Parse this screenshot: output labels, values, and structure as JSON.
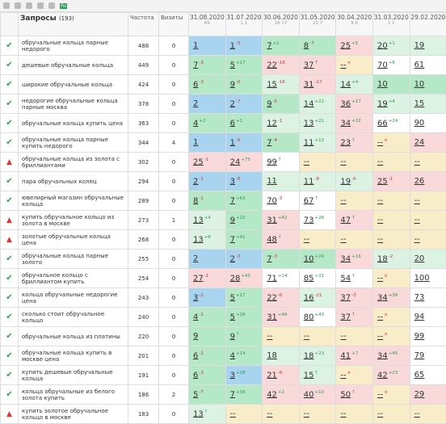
{
  "toolbar": {
    "badge": "Rs"
  },
  "header": {
    "query_title": "Запросы",
    "query_count": "(193)",
    "freq": "Частота",
    "visits": "Визиты",
    "dates": [
      {
        "date": "31.08.2020",
        "sub": "69"
      },
      {
        "date": "31.07.2020",
        "sub": "1 1"
      },
      {
        "date": "30.06.2020",
        "sub": "16 17"
      },
      {
        "date": "31.05.2020",
        "sub": "15 7"
      },
      {
        "date": "30.04.2020",
        "sub": "9 8"
      },
      {
        "date": "31.03.2020",
        "sub": "1 1"
      },
      {
        "date": "29.02.2020",
        "sub": null
      }
    ]
  },
  "rows": [
    {
      "status": "ok",
      "query": "обручальные кольца парные недорого",
      "freq": 488,
      "visits": 0,
      "cells": [
        {
          "pos": 1,
          "delta": null
        },
        {
          "pos": 1,
          "delta": "-5"
        },
        {
          "pos": 7,
          "delta": "+1"
        },
        {
          "pos": 8,
          "delta": "-7"
        },
        {
          "pos": 25,
          "delta": "+5"
        },
        {
          "pos": 20,
          "delta": "+1"
        },
        {
          "pos": 19,
          "delta": null
        }
      ]
    },
    {
      "status": "ok",
      "query": "дешевые обручальные кольца",
      "freq": 449,
      "visits": 0,
      "cells": [
        {
          "pos": 7,
          "delta": "-3"
        },
        {
          "pos": 5,
          "delta": "+17"
        },
        {
          "pos": 22,
          "delta": "-16"
        },
        {
          "pos": 37,
          "delta": "↑"
        },
        {
          "pos": "--",
          "delta": "×"
        },
        {
          "pos": 70,
          "delta": "+8"
        },
        {
          "pos": 61,
          "delta": null
        }
      ]
    },
    {
      "status": "ok",
      "query": "широкие обручальные кольца",
      "freq": 424,
      "visits": 0,
      "cells": [
        {
          "pos": 6,
          "delta": "-3"
        },
        {
          "pos": 9,
          "delta": "-6"
        },
        {
          "pos": 15,
          "delta": "-16"
        },
        {
          "pos": 31,
          "delta": "-17"
        },
        {
          "pos": 14,
          "delta": "+4"
        },
        {
          "pos": 10,
          "delta": null
        },
        {
          "pos": 10,
          "delta": null
        }
      ]
    },
    {
      "status": "ok",
      "query": "недорогие обручальные кольца парные москва",
      "freq": 378,
      "visits": 0,
      "cells": [
        {
          "pos": 2,
          "delta": null
        },
        {
          "pos": 2,
          "delta": "-7"
        },
        {
          "pos": 9,
          "delta": "-5"
        },
        {
          "pos": 14,
          "delta": "+22"
        },
        {
          "pos": 36,
          "delta": "+17"
        },
        {
          "pos": 19,
          "delta": "+4"
        },
        {
          "pos": 15,
          "delta": null
        }
      ]
    },
    {
      "status": "ok",
      "query": "обручальные кольца купить цена",
      "freq": 363,
      "visits": 0,
      "cells": [
        {
          "pos": 4,
          "delta": "+2"
        },
        {
          "pos": 6,
          "delta": "+1"
        },
        {
          "pos": 12,
          "delta": "-1"
        },
        {
          "pos": 13,
          "delta": "+21"
        },
        {
          "pos": 34,
          "delta": "+32"
        },
        {
          "pos": 66,
          "delta": "+24"
        },
        {
          "pos": 90,
          "delta": null
        }
      ]
    },
    {
      "status": "ok",
      "query": "обручальные кольца парные купить недорого",
      "freq": 344,
      "visits": 4,
      "cells": [
        {
          "pos": 1,
          "delta": null
        },
        {
          "pos": 1,
          "delta": "-6"
        },
        {
          "pos": 7,
          "delta": "-4"
        },
        {
          "pos": 11,
          "delta": "+12"
        },
        {
          "pos": 23,
          "delta": "↑"
        },
        {
          "pos": "--",
          "delta": "×"
        },
        {
          "pos": 24,
          "delta": null
        }
      ]
    },
    {
      "status": "warn",
      "query": "обручальные кольца из золота с бриллиантами",
      "freq": 302,
      "visits": 0,
      "cells": [
        {
          "pos": 25,
          "delta": "-1"
        },
        {
          "pos": 24,
          "delta": "+75"
        },
        {
          "pos": 99,
          "delta": "↑"
        },
        {
          "pos": "--",
          "delta": null
        },
        {
          "pos": "--",
          "delta": null
        },
        {
          "pos": "--",
          "delta": null
        },
        {
          "pos": "--",
          "delta": null
        }
      ]
    },
    {
      "status": "ok",
      "query": "пара обручальных колец",
      "freq": 294,
      "visits": 0,
      "cells": [
        {
          "pos": 2,
          "delta": "-1"
        },
        {
          "pos": 3,
          "delta": "-8"
        },
        {
          "pos": 11,
          "delta": null
        },
        {
          "pos": 11,
          "delta": "-8"
        },
        {
          "pos": 19,
          "delta": "-6"
        },
        {
          "pos": 25,
          "delta": "-1"
        },
        {
          "pos": 26,
          "delta": null
        }
      ]
    },
    {
      "status": "ok",
      "query": "ювелирный магазин обручальные кольца",
      "freq": 289,
      "visits": 0,
      "cells": [
        {
          "pos": 8,
          "delta": "-1"
        },
        {
          "pos": 7,
          "delta": "+63"
        },
        {
          "pos": 70,
          "delta": "-3"
        },
        {
          "pos": 67,
          "delta": "↑"
        },
        {
          "pos": "--",
          "delta": null
        },
        {
          "pos": "--",
          "delta": null
        },
        {
          "pos": "--",
          "delta": null
        }
      ]
    },
    {
      "status": "warn",
      "query": "купить обручальное кольцо из золота в москве",
      "freq": 273,
      "visits": 1,
      "cells": [
        {
          "pos": 13,
          "delta": "+4"
        },
        {
          "pos": 9,
          "delta": "+22"
        },
        {
          "pos": 31,
          "delta": "+42"
        },
        {
          "pos": 73,
          "delta": "+26"
        },
        {
          "pos": 47,
          "delta": "↑"
        },
        {
          "pos": "--",
          "delta": null
        },
        {
          "pos": "--",
          "delta": null
        }
      ]
    },
    {
      "status": "warn",
      "query": "золотые обручальные кольца цена",
      "freq": 268,
      "visits": 0,
      "cells": [
        {
          "pos": 13,
          "delta": "+6"
        },
        {
          "pos": 7,
          "delta": "+41"
        },
        {
          "pos": 48,
          "delta": "↑"
        },
        {
          "pos": "--",
          "delta": null
        },
        {
          "pos": "--",
          "delta": null
        },
        {
          "pos": "--",
          "delta": null
        },
        {
          "pos": "--",
          "delta": null
        }
      ]
    },
    {
      "status": "ok",
      "query": "обручальные кольца парные золото",
      "freq": 255,
      "visits": 0,
      "cells": [
        {
          "pos": 2,
          "delta": null
        },
        {
          "pos": 2,
          "delta": "-3"
        },
        {
          "pos": 7,
          "delta": "-3"
        },
        {
          "pos": 10,
          "delta": "+24"
        },
        {
          "pos": 34,
          "delta": "+16"
        },
        {
          "pos": 18,
          "delta": "-2"
        },
        {
          "pos": 20,
          "delta": null
        }
      ]
    },
    {
      "status": "ok",
      "query": "обручальное кольцо с бриллиантом купить",
      "freq": 254,
      "visits": 0,
      "cells": [
        {
          "pos": 27,
          "delta": "-1"
        },
        {
          "pos": 28,
          "delta": "+43"
        },
        {
          "pos": 71,
          "delta": "+14"
        },
        {
          "pos": 85,
          "delta": "+31"
        },
        {
          "pos": 54,
          "delta": "↑"
        },
        {
          "pos": "--",
          "delta": "×"
        },
        {
          "pos": 100,
          "delta": null
        }
      ]
    },
    {
      "status": "ok",
      "query": "кольца обручальные недорогие цена",
      "freq": 243,
      "visits": 0,
      "cells": [
        {
          "pos": 3,
          "delta": "-2"
        },
        {
          "pos": 5,
          "delta": "+17"
        },
        {
          "pos": 22,
          "delta": "-6"
        },
        {
          "pos": 16,
          "delta": "-21"
        },
        {
          "pos": 37,
          "delta": "-3"
        },
        {
          "pos": 34,
          "delta": "+39"
        },
        {
          "pos": 73,
          "delta": null
        }
      ]
    },
    {
      "status": "ok",
      "query": "сколько стоит обручальное кольцо",
      "freq": 240,
      "visits": 0,
      "cells": [
        {
          "pos": 4,
          "delta": "-1"
        },
        {
          "pos": 5,
          "delta": "+26"
        },
        {
          "pos": 31,
          "delta": "+49"
        },
        {
          "pos": 80,
          "delta": "+43"
        },
        {
          "pos": 37,
          "delta": "↑"
        },
        {
          "pos": "--",
          "delta": "×"
        },
        {
          "pos": 94,
          "delta": null
        }
      ]
    },
    {
      "status": "ok",
      "query": "обручальные кольца из платины",
      "freq": 220,
      "visits": 0,
      "cells": [
        {
          "pos": 9,
          "delta": null
        },
        {
          "pos": 9,
          "delta": "↑"
        },
        {
          "pos": "--",
          "delta": null
        },
        {
          "pos": "--",
          "delta": null
        },
        {
          "pos": "--",
          "delta": null
        },
        {
          "pos": "--",
          "delta": "×"
        },
        {
          "pos": 99,
          "delta": null
        }
      ]
    },
    {
      "status": "ok",
      "query": "обручальные кольца купить в москве цена",
      "freq": 201,
      "visits": 0,
      "cells": [
        {
          "pos": 6,
          "delta": "-1"
        },
        {
          "pos": 4,
          "delta": "+14"
        },
        {
          "pos": 18,
          "delta": null
        },
        {
          "pos": 18,
          "delta": "+23"
        },
        {
          "pos": 41,
          "delta": "+7"
        },
        {
          "pos": 34,
          "delta": "+45"
        },
        {
          "pos": 79,
          "delta": null
        }
      ]
    },
    {
      "status": "ok",
      "query": "купить дешевые обручальные кольца",
      "freq": 191,
      "visits": 0,
      "cells": [
        {
          "pos": 6,
          "delta": "-3"
        },
        {
          "pos": 3,
          "delta": "+38"
        },
        {
          "pos": 21,
          "delta": "-6"
        },
        {
          "pos": 15,
          "delta": "↑"
        },
        {
          "pos": "--",
          "delta": "×"
        },
        {
          "pos": 42,
          "delta": "+23"
        },
        {
          "pos": 65,
          "delta": null
        }
      ]
    },
    {
      "status": "ok",
      "query": "кольца обручальные из белого золота купить",
      "freq": 186,
      "visits": 2,
      "cells": [
        {
          "pos": 5,
          "delta": "-7"
        },
        {
          "pos": 7,
          "delta": "+36"
        },
        {
          "pos": 42,
          "delta": "+2"
        },
        {
          "pos": 40,
          "delta": "+10"
        },
        {
          "pos": 50,
          "delta": "↑"
        },
        {
          "pos": "--",
          "delta": "×"
        },
        {
          "pos": 29,
          "delta": null
        }
      ]
    },
    {
      "status": "warn",
      "query": "купить золотое обручальное кольцо в москве",
      "freq": 183,
      "visits": 0,
      "cells": [
        {
          "pos": 13,
          "delta": "↑"
        },
        {
          "pos": "--",
          "delta": null
        },
        {
          "pos": "--",
          "delta": null
        },
        {
          "pos": "--",
          "delta": null
        },
        {
          "pos": "--",
          "delta": null
        },
        {
          "pos": "--",
          "delta": null
        },
        {
          "pos": "--",
          "delta": null
        }
      ]
    }
  ]
}
